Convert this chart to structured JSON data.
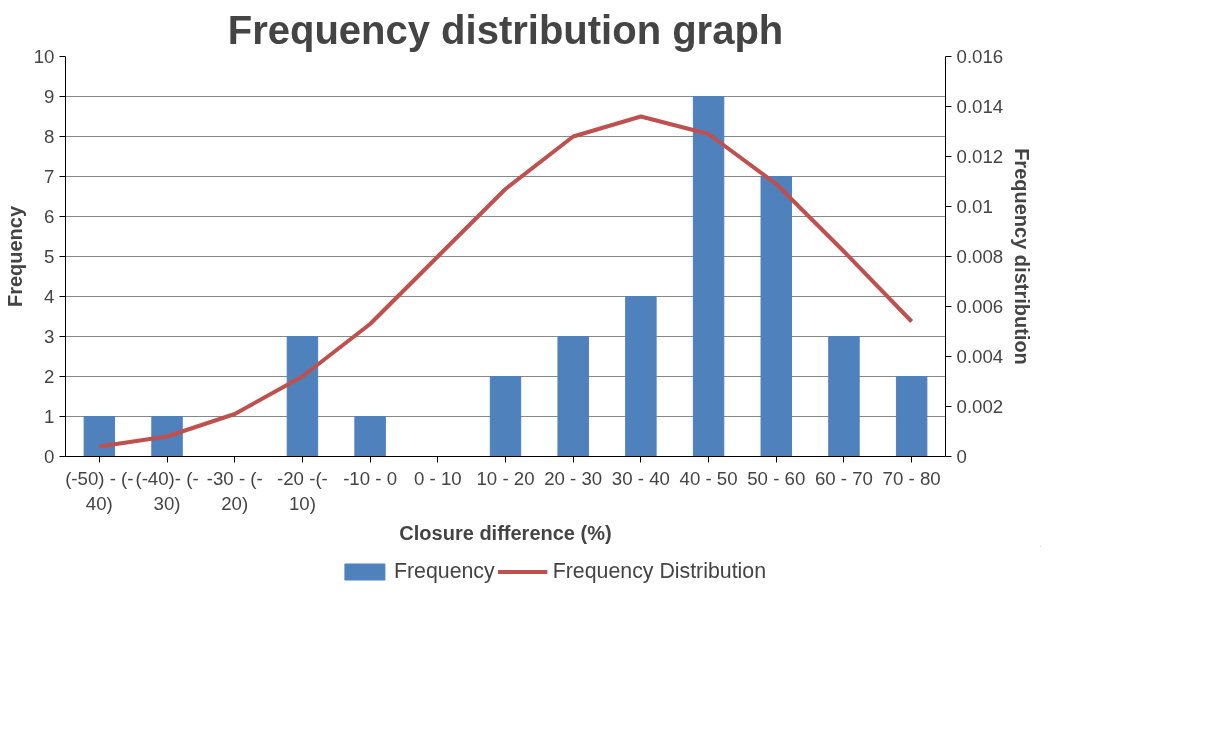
{
  "chart_data": {
    "type": "bar",
    "title": "Frequency distribution graph",
    "xlabel": "Closure difference (%)",
    "ylabel": "Frequency",
    "y2label": "Frequency distribution",
    "categories": [
      "(-50) - (-40)",
      "(-40)- (-30)",
      "-30 - (-20)",
      "-20 -(-10)",
      "-10 - 0",
      "0 - 10",
      "10 - 20",
      "20 - 30",
      "30 - 40",
      "40 - 50",
      "50 - 60",
      "60 - 70",
      "70 - 80"
    ],
    "series": [
      {
        "name": "Frequency",
        "type": "bar",
        "color": "#4f81bd",
        "values": [
          1,
          1,
          0,
          3,
          1,
          0,
          2,
          3,
          4,
          9,
          7,
          3,
          2
        ]
      },
      {
        "name": "Frequency Distribution",
        "type": "line",
        "axis": "y2",
        "color": "#c0504d",
        "values": [
          0.0004,
          0.0008,
          0.0017,
          0.0032,
          0.0053,
          0.008,
          0.0107,
          0.0128,
          0.0136,
          0.0129,
          0.0109,
          0.0082,
          0.0054
        ]
      }
    ],
    "ylim": [
      0,
      10
    ],
    "yticks": [
      0,
      1,
      2,
      3,
      4,
      5,
      6,
      7,
      8,
      9,
      10
    ],
    "y2lim": [
      0,
      0.016
    ],
    "y2ticks": [
      0,
      0.002,
      0.004,
      0.006,
      0.008,
      0.01,
      0.012,
      0.014,
      0.016
    ],
    "grid": "y",
    "legend": "bottom",
    "marker": "none"
  }
}
